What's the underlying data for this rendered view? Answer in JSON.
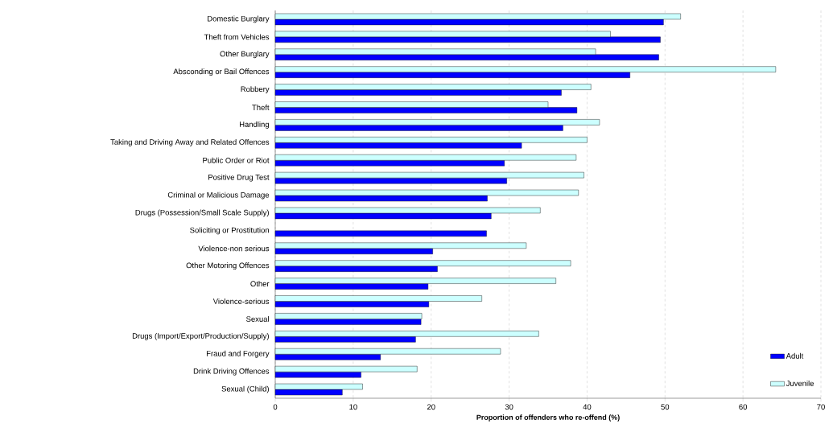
{
  "chart_data": {
    "type": "bar",
    "orientation": "horizontal",
    "xlabel": "Proportion of offenders who re-offend (%)",
    "categories": [
      "Domestic Burglary",
      "Theft from Vehicles",
      "Other Burglary",
      "Absconding or Bail Offences",
      "Robbery",
      "Theft",
      "Handling",
      "Taking and Driving Away and Related Offences",
      "Public Order or Riot",
      "Positive Drug Test",
      "Criminal or Malicious Damage",
      "Drugs (Possession/Small Scale Supply)",
      "Soliciting or Prostitution",
      "Violence-non serious",
      "Other Motoring Offences",
      "Other",
      "Violence-serious",
      "Sexual",
      "Drugs (Import/Export/Production/Supply)",
      "Fraud and Forgery",
      "Drink Driving Offences",
      "Sexual (Child)"
    ],
    "series": [
      {
        "name": "Adult",
        "color": "#0000ff",
        "values": [
          49.8,
          49.4,
          49.2,
          45.5,
          36.7,
          38.7,
          36.9,
          31.6,
          29.4,
          29.7,
          27.2,
          27.7,
          27.1,
          20.2,
          20.8,
          19.6,
          19.7,
          18.7,
          18.0,
          13.5,
          11.0,
          8.6
        ]
      },
      {
        "name": "Juvenile",
        "color": "#ccffff",
        "values": [
          52.0,
          43.0,
          41.1,
          64.2,
          40.5,
          35.0,
          41.6,
          40.0,
          38.6,
          39.6,
          38.9,
          34.0,
          null,
          32.2,
          37.9,
          36.0,
          26.5,
          18.8,
          33.8,
          28.9,
          18.2,
          11.2
        ]
      }
    ],
    "xlim": [
      0,
      70
    ],
    "xticks": [
      0,
      10,
      20,
      30,
      40,
      50,
      60,
      70
    ],
    "grid": "x",
    "legend": "bottom right"
  }
}
